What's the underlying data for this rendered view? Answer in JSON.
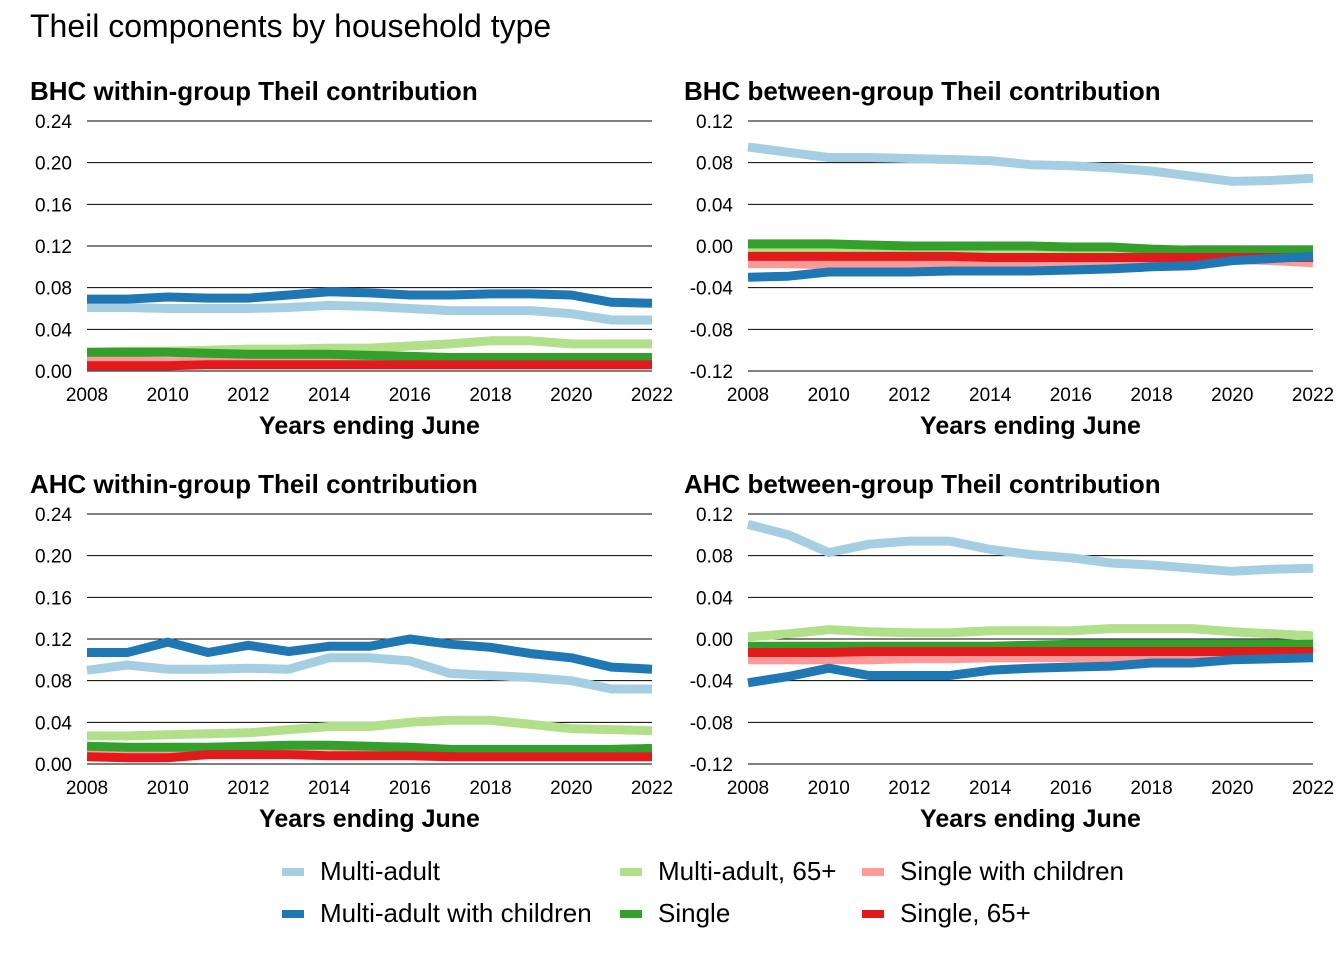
{
  "title": "Theil components by household type",
  "colors": {
    "Multi-adult": "#a6cee3",
    "Multi-adult with children": "#1f78b4",
    "Multi-adult, 65+": "#b2df8a",
    "Single": "#33a02c",
    "Single with children": "#fb9a99",
    "Single, 65+": "#e31a1c"
  },
  "legend": [
    {
      "label": "Multi-adult",
      "color": "#a6cee3"
    },
    {
      "label": "Multi-adult with children",
      "color": "#1f78b4"
    },
    {
      "label": "Multi-adult, 65+",
      "color": "#b2df8a"
    },
    {
      "label": "Single",
      "color": "#33a02c"
    },
    {
      "label": "Single with children",
      "color": "#fb9a99"
    },
    {
      "label": "Single, 65+",
      "color": "#e31a1c"
    }
  ],
  "chart_data": [
    {
      "type": "line",
      "title": "BHC within-group Theil contribution",
      "xlabel": "Years ending June",
      "ylabel": "",
      "ylim": [
        0,
        0.24
      ],
      "yticks": [
        "0.00",
        "0.04",
        "0.08",
        "0.12",
        "0.16",
        "0.20",
        "0.24"
      ],
      "xticks": [
        "2008",
        "2010",
        "2012",
        "2014",
        "2016",
        "2018",
        "2020",
        "2022"
      ],
      "x": [
        2008,
        2009,
        2010,
        2011,
        2012,
        2013,
        2014,
        2015,
        2016,
        2017,
        2018,
        2019,
        2020,
        2021,
        2022
      ],
      "series": [
        {
          "name": "Multi-adult",
          "values": [
            0.061,
            0.061,
            0.06,
            0.06,
            0.06,
            0.061,
            0.063,
            0.062,
            0.06,
            0.058,
            0.058,
            0.058,
            0.055,
            0.049,
            0.049
          ]
        },
        {
          "name": "Multi-adult, 65+",
          "values": [
            0.018,
            0.019,
            0.019,
            0.02,
            0.021,
            0.021,
            0.022,
            0.022,
            0.024,
            0.026,
            0.029,
            0.029,
            0.026,
            0.026,
            0.026
          ]
        },
        {
          "name": "Single with children",
          "values": [
            0.01,
            0.01,
            0.009,
            0.009,
            0.01,
            0.01,
            0.009,
            0.009,
            0.008,
            0.008,
            0.008,
            0.008,
            0.008,
            0.008,
            0.008
          ]
        },
        {
          "name": "Single",
          "values": [
            0.018,
            0.018,
            0.018,
            0.017,
            0.016,
            0.016,
            0.016,
            0.015,
            0.014,
            0.013,
            0.013,
            0.013,
            0.013,
            0.013,
            0.013
          ]
        },
        {
          "name": "Single, 65+",
          "values": [
            0.005,
            0.005,
            0.005,
            0.006,
            0.006,
            0.006,
            0.006,
            0.006,
            0.006,
            0.006,
            0.006,
            0.006,
            0.006,
            0.006,
            0.006
          ]
        },
        {
          "name": "Multi-adult with children",
          "values": [
            0.069,
            0.069,
            0.071,
            0.07,
            0.07,
            0.073,
            0.076,
            0.075,
            0.073,
            0.073,
            0.074,
            0.074,
            0.073,
            0.066,
            0.065
          ]
        }
      ]
    },
    {
      "type": "line",
      "title": "BHC between-group Theil contribution",
      "xlabel": "Years ending June",
      "ylabel": "",
      "ylim": [
        -0.12,
        0.12
      ],
      "yticks": [
        "-0.12",
        "-0.08",
        "-0.04",
        "0.00",
        "0.04",
        "0.08",
        "0.12"
      ],
      "xticks": [
        "2008",
        "2010",
        "2012",
        "2014",
        "2016",
        "2018",
        "2020",
        "2022"
      ],
      "x": [
        2008,
        2009,
        2010,
        2011,
        2012,
        2013,
        2014,
        2015,
        2016,
        2017,
        2018,
        2019,
        2020,
        2021,
        2022
      ],
      "series": [
        {
          "name": "Multi-adult",
          "values": [
            0.095,
            0.09,
            0.085,
            0.085,
            0.084,
            0.083,
            0.082,
            0.078,
            0.077,
            0.075,
            0.072,
            0.067,
            0.062,
            0.063,
            0.065
          ]
        },
        {
          "name": "Multi-adult, 65+",
          "values": [
            -0.005,
            -0.005,
            -0.005,
            -0.005,
            -0.005,
            -0.005,
            -0.005,
            -0.005,
            -0.005,
            -0.005,
            -0.006,
            -0.006,
            -0.006,
            -0.006,
            -0.006
          ]
        },
        {
          "name": "Single with children",
          "values": [
            -0.017,
            -0.017,
            -0.018,
            -0.018,
            -0.018,
            -0.018,
            -0.018,
            -0.018,
            -0.017,
            -0.016,
            -0.015,
            -0.014,
            -0.013,
            -0.014,
            -0.016
          ]
        },
        {
          "name": "Single",
          "values": [
            0.002,
            0.002,
            0.002,
            0.001,
            0.0,
            0.0,
            0.0,
            0.0,
            -0.001,
            -0.001,
            -0.003,
            -0.004,
            -0.004,
            -0.004,
            -0.004
          ]
        },
        {
          "name": "Single, 65+",
          "values": [
            -0.01,
            -0.01,
            -0.01,
            -0.01,
            -0.01,
            -0.01,
            -0.011,
            -0.011,
            -0.011,
            -0.011,
            -0.011,
            -0.011,
            -0.011,
            -0.011,
            -0.011
          ]
        },
        {
          "name": "Multi-adult with children",
          "values": [
            -0.03,
            -0.029,
            -0.025,
            -0.025,
            -0.025,
            -0.024,
            -0.024,
            -0.024,
            -0.023,
            -0.022,
            -0.02,
            -0.019,
            -0.014,
            -0.012,
            -0.01
          ]
        }
      ]
    },
    {
      "type": "line",
      "title": "AHC within-group Theil contribution",
      "xlabel": "Years ending June",
      "ylabel": "",
      "ylim": [
        0,
        0.24
      ],
      "yticks": [
        "0.00",
        "0.04",
        "0.08",
        "0.12",
        "0.16",
        "0.20",
        "0.24"
      ],
      "xticks": [
        "2008",
        "2010",
        "2012",
        "2014",
        "2016",
        "2018",
        "2020",
        "2022"
      ],
      "x": [
        2008,
        2009,
        2010,
        2011,
        2012,
        2013,
        2014,
        2015,
        2016,
        2017,
        2018,
        2019,
        2020,
        2021,
        2022
      ],
      "series": [
        {
          "name": "Multi-adult",
          "values": [
            0.09,
            0.095,
            0.091,
            0.091,
            0.092,
            0.091,
            0.102,
            0.102,
            0.099,
            0.087,
            0.085,
            0.083,
            0.08,
            0.072,
            0.072
          ]
        },
        {
          "name": "Multi-adult, 65+",
          "values": [
            0.027,
            0.027,
            0.028,
            0.029,
            0.03,
            0.033,
            0.036,
            0.036,
            0.04,
            0.042,
            0.042,
            0.038,
            0.034,
            0.033,
            0.032
          ]
        },
        {
          "name": "Single with children",
          "values": [
            0.011,
            0.011,
            0.012,
            0.013,
            0.016,
            0.017,
            0.017,
            0.013,
            0.012,
            0.01,
            0.009,
            0.009,
            0.009,
            0.009,
            0.009
          ]
        },
        {
          "name": "Single",
          "values": [
            0.017,
            0.016,
            0.016,
            0.016,
            0.017,
            0.018,
            0.018,
            0.017,
            0.016,
            0.014,
            0.014,
            0.014,
            0.014,
            0.014,
            0.015
          ]
        },
        {
          "name": "Single, 65+",
          "values": [
            0.007,
            0.006,
            0.006,
            0.009,
            0.009,
            0.009,
            0.008,
            0.008,
            0.008,
            0.007,
            0.007,
            0.007,
            0.007,
            0.007,
            0.007
          ]
        },
        {
          "name": "Multi-adult with children",
          "values": [
            0.107,
            0.107,
            0.117,
            0.107,
            0.114,
            0.108,
            0.113,
            0.113,
            0.12,
            0.115,
            0.112,
            0.106,
            0.102,
            0.093,
            0.091
          ]
        }
      ]
    },
    {
      "type": "line",
      "title": "AHC between-group Theil contribution",
      "xlabel": "Years ending June",
      "ylabel": "",
      "ylim": [
        -0.12,
        0.12
      ],
      "yticks": [
        "-0.12",
        "-0.08",
        "-0.04",
        "0.00",
        "0.04",
        "0.08",
        "0.12"
      ],
      "xticks": [
        "2008",
        "2010",
        "2012",
        "2014",
        "2016",
        "2018",
        "2020",
        "2022"
      ],
      "x": [
        2008,
        2009,
        2010,
        2011,
        2012,
        2013,
        2014,
        2015,
        2016,
        2017,
        2018,
        2019,
        2020,
        2021,
        2022
      ],
      "series": [
        {
          "name": "Multi-adult",
          "values": [
            0.11,
            0.1,
            0.083,
            0.091,
            0.094,
            0.094,
            0.086,
            0.081,
            0.078,
            0.073,
            0.071,
            0.068,
            0.065,
            0.067,
            0.068
          ]
        },
        {
          "name": "Multi-adult, 65+",
          "values": [
            0.002,
            0.005,
            0.009,
            0.007,
            0.006,
            0.006,
            0.008,
            0.008,
            0.008,
            0.01,
            0.01,
            0.01,
            0.007,
            0.005,
            0.003
          ]
        },
        {
          "name": "Single with children",
          "values": [
            -0.02,
            -0.02,
            -0.02,
            -0.02,
            -0.019,
            -0.019,
            -0.018,
            -0.018,
            -0.018,
            -0.018,
            -0.017,
            -0.016,
            -0.016,
            -0.016,
            -0.017
          ]
        },
        {
          "name": "Single",
          "values": [
            -0.007,
            -0.007,
            -0.007,
            -0.007,
            -0.007,
            -0.007,
            -0.007,
            -0.006,
            -0.005,
            -0.005,
            -0.005,
            -0.005,
            -0.005,
            -0.005,
            -0.005
          ]
        },
        {
          "name": "Single, 65+",
          "values": [
            -0.013,
            -0.013,
            -0.013,
            -0.012,
            -0.012,
            -0.012,
            -0.012,
            -0.012,
            -0.012,
            -0.012,
            -0.012,
            -0.012,
            -0.012,
            -0.012,
            -0.012
          ]
        },
        {
          "name": "Multi-adult with children",
          "values": [
            -0.042,
            -0.036,
            -0.028,
            -0.035,
            -0.035,
            -0.035,
            -0.03,
            -0.028,
            -0.027,
            -0.026,
            -0.023,
            -0.023,
            -0.02,
            -0.019,
            -0.018
          ]
        }
      ]
    }
  ]
}
